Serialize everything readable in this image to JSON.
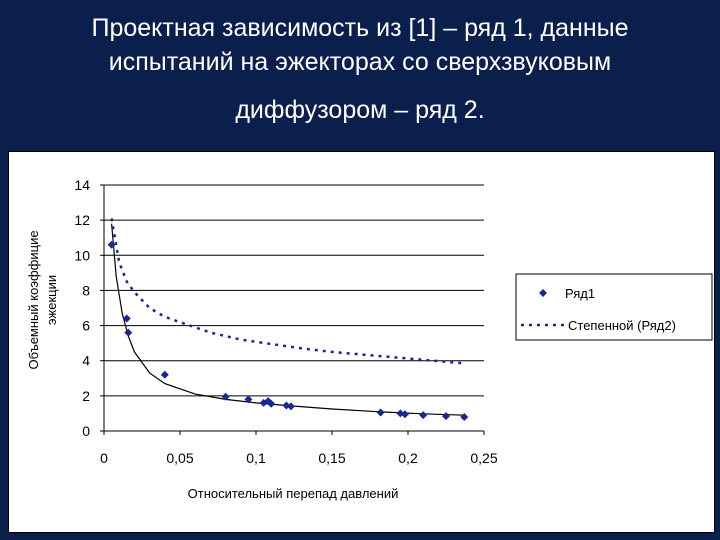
{
  "slide": {
    "title_line1": "Проектная зависимость из [1] – ряд 1, данные",
    "title_line2": "испытаний на эжекторах со сверхзвуковым",
    "title_line3": "диффузором – ряд 2."
  },
  "colors": {
    "background": "#0b1f4d",
    "series": "#1a2a8c",
    "grid": "#000000"
  },
  "chart_data": {
    "type": "scatter",
    "title": "",
    "xlabel": "Относительный перепад давлений",
    "ylabel_line1": "Объемный коэффицие",
    "ylabel_line2": "эжекции",
    "xlim": [
      0,
      0.25
    ],
    "ylim": [
      0,
      14
    ],
    "x_ticks": [
      0,
      0.05,
      0.1,
      0.15,
      0.2,
      0.25
    ],
    "x_tick_labels": [
      "0",
      "0,05",
      "0,1",
      "0,15",
      "0,2",
      "0,25"
    ],
    "y_ticks": [
      0,
      2,
      4,
      6,
      8,
      10,
      12,
      14
    ],
    "y_tick_labels": [
      "0",
      "2",
      "4",
      "6",
      "8",
      "10",
      "12",
      "14"
    ],
    "grid": "horizontal",
    "legend_position": "right",
    "series": [
      {
        "name": "Ряд1",
        "style": "points",
        "x": [
          0.005,
          0.015,
          0.016,
          0.04,
          0.08,
          0.095,
          0.105,
          0.108,
          0.11,
          0.12,
          0.123,
          0.182,
          0.195,
          0.198,
          0.21,
          0.225,
          0.237
        ],
        "y": [
          10.6,
          6.4,
          5.6,
          3.2,
          1.95,
          1.8,
          1.6,
          1.7,
          1.55,
          1.45,
          1.4,
          1.05,
          1.0,
          0.95,
          0.9,
          0.85,
          0.8
        ]
      },
      {
        "name": "Степенной (Ряд2)",
        "style": "dotted-line",
        "x": [
          0.005,
          0.01,
          0.015,
          0.02,
          0.03,
          0.04,
          0.05,
          0.07,
          0.09,
          0.11,
          0.13,
          0.15,
          0.17,
          0.19,
          0.21,
          0.23,
          0.237
        ],
        "y": [
          12.1,
          9.6,
          8.5,
          7.9,
          7.0,
          6.5,
          6.2,
          5.6,
          5.2,
          4.95,
          4.7,
          4.5,
          4.35,
          4.2,
          4.05,
          3.9,
          3.85
        ]
      }
    ],
    "trendline_series1": {
      "style": "solid-line",
      "x": [
        0.005,
        0.008,
        0.012,
        0.016,
        0.02,
        0.03,
        0.04,
        0.06,
        0.08,
        0.1,
        0.12,
        0.15,
        0.18,
        0.21,
        0.237
      ],
      "y": [
        11.8,
        8.8,
        6.7,
        5.4,
        4.5,
        3.3,
        2.7,
        2.1,
        1.8,
        1.6,
        1.45,
        1.25,
        1.1,
        0.98,
        0.9
      ]
    }
  }
}
